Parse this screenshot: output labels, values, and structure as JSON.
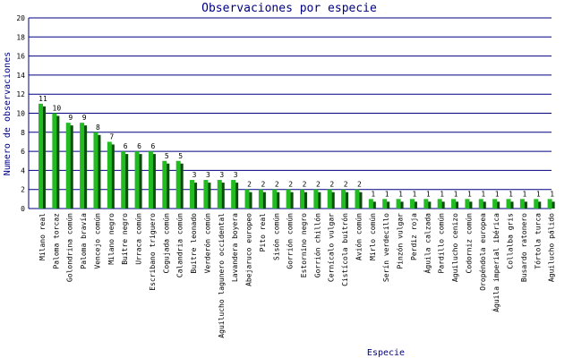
{
  "chart_data": {
    "type": "bar",
    "title": "Observaciones por especie",
    "xlabel": "Especie",
    "ylabel": "Numero de observaciones",
    "ylim": [
      0,
      20
    ],
    "yticks": [
      0,
      2,
      4,
      6,
      8,
      10,
      12,
      14,
      16,
      18,
      20
    ],
    "grid": true,
    "bar_color": "#22bb22",
    "shadow_color": "#0b4d0b",
    "grid_color": "#000080",
    "categories": [
      "Milano real",
      "Paloma torcaz",
      "Golondrina común",
      "Paloma bravía",
      "Vencejo común",
      "Milano negro",
      "Buitre negro",
      "Urraca común",
      "Escribano triguero",
      "Cogujada común",
      "Calandria común",
      "Buitre leonado",
      "Verderón común",
      "Aguilucho lagunero occidental",
      "Lavandera boyera",
      "Abejaruco europeo",
      "Pito real",
      "Sisón común",
      "Gorrión común",
      "Estornino negro",
      "Gorrión chillón",
      "Cernícalo vulgar",
      "Cistícola buitrón",
      "Avión común",
      "Mirlo común",
      "Serín verdecillo",
      "Pinzón vulgar",
      "Perdiz roja",
      "Águila calzada",
      "Pardillo común",
      "Aguilucho cenizo",
      "Codorniz común",
      "Oropéndola europea",
      "Águila imperial ibérica",
      "Collalba gris",
      "Busardo ratonero",
      "Tórtola turca",
      "Aguilucho pálido"
    ],
    "values": [
      11,
      10,
      9,
      9,
      8,
      7,
      6,
      6,
      6,
      5,
      5,
      3,
      3,
      3,
      3,
      2,
      2,
      2,
      2,
      2,
      2,
      2,
      2,
      2,
      1,
      1,
      1,
      1,
      1,
      1,
      1,
      1,
      1,
      1,
      1,
      1,
      1,
      1
    ]
  }
}
